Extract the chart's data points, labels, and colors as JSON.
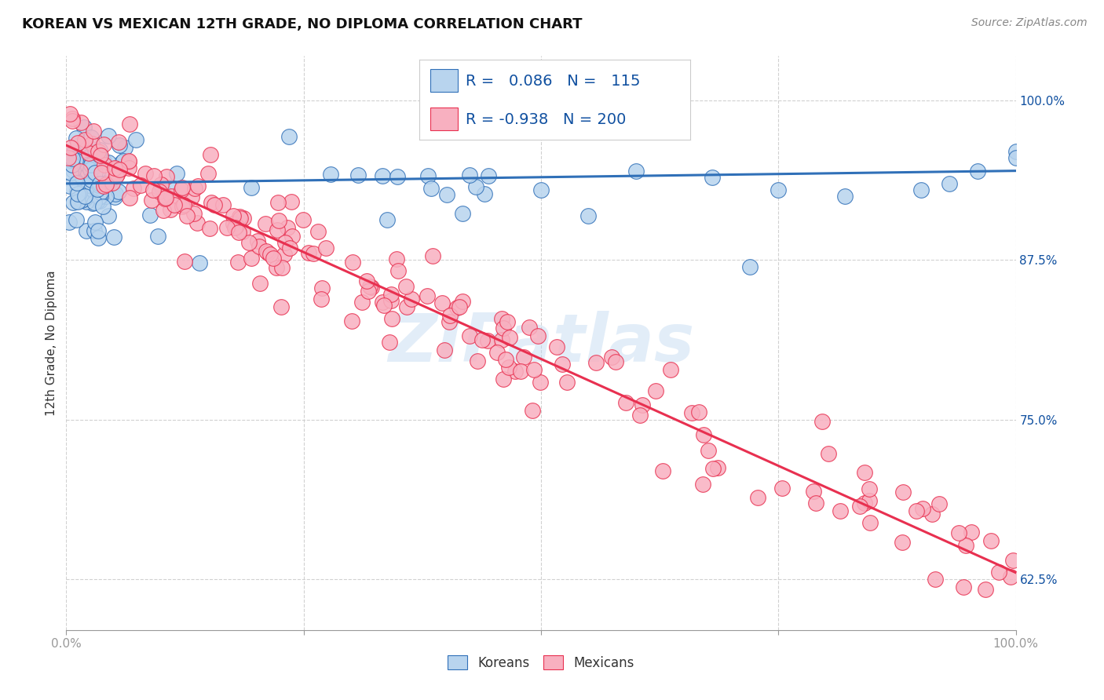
{
  "title": "KOREAN VS MEXICAN 12TH GRADE, NO DIPLOMA CORRELATION CHART",
  "source": "Source: ZipAtlas.com",
  "ylabel": "12th Grade, No Diploma",
  "watermark": "ZIPatlas",
  "korean_R": 0.086,
  "korean_N": 115,
  "mexican_R": -0.938,
  "mexican_N": 200,
  "xlim": [
    0.0,
    1.0
  ],
  "ylim": [
    0.585,
    1.035
  ],
  "ytick_positions": [
    0.625,
    0.75,
    0.875,
    1.0
  ],
  "ytick_labels": [
    "62.5%",
    "75.0%",
    "87.5%",
    "100.0%"
  ],
  "korean_color": "#b8d4ee",
  "mexican_color": "#f8b0c0",
  "korean_line_color": "#3070b8",
  "mexican_line_color": "#e83050",
  "legend_text_color": "#1050a0",
  "tick_color": "#1050a0",
  "background_color": "#ffffff",
  "grid_color": "#cccccc",
  "title_fontsize": 13,
  "source_fontsize": 10,
  "ylabel_fontsize": 11,
  "tick_fontsize": 11,
  "legend_fontsize": 14,
  "korean_line_y0": 0.935,
  "korean_line_y1": 0.945,
  "mexican_line_y0": 0.965,
  "mexican_line_y1": 0.63
}
